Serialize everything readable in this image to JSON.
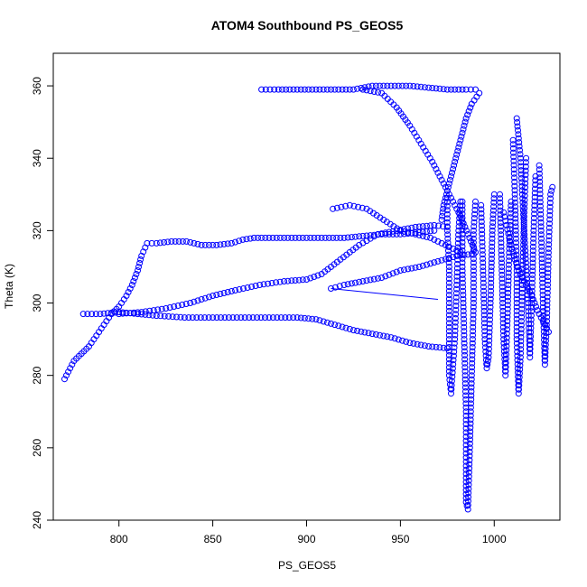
{
  "chart_data": {
    "type": "scatter",
    "title": "ATOM4 Southbound PS_GEOS5",
    "xlabel": "PS_GEOS5",
    "ylabel": "Theta (K)",
    "xlim": [
      765,
      1035
    ],
    "ylim": [
      240,
      369
    ],
    "x_ticks": [
      800,
      850,
      900,
      950,
      1000
    ],
    "y_ticks": [
      240,
      260,
      280,
      300,
      320,
      340,
      360
    ],
    "grid": false,
    "marker": "open-circle",
    "color": "#0000ff",
    "series": [
      {
        "segments": [
          [
            [
              771,
              279
            ],
            [
              773,
              281
            ],
            [
              776,
              284
            ],
            [
              780,
              286
            ],
            [
              784,
              288
            ],
            [
              788,
              291
            ],
            [
              792,
              294
            ],
            [
              796,
              297
            ],
            [
              800,
              299
            ],
            [
              804,
              302
            ],
            [
              807,
              305
            ],
            [
              810,
              309
            ],
            [
              812,
              313
            ],
            [
              815,
              316.5
            ],
            [
              820,
              316.5
            ],
            [
              828,
              317
            ],
            [
              836,
              317
            ],
            [
              844,
              316
            ],
            [
              852,
              316
            ],
            [
              860,
              316.5
            ],
            [
              866,
              317.5
            ],
            [
              872,
              318
            ],
            [
              880,
              318
            ],
            [
              890,
              318
            ],
            [
              900,
              318
            ],
            [
              910,
              318
            ],
            [
              920,
              318
            ],
            [
              930,
              318.5
            ],
            [
              940,
              319
            ],
            [
              950,
              319
            ],
            [
              960,
              319.5
            ],
            [
              968,
              320
            ]
          ],
          [
            [
              781,
              297
            ],
            [
              790,
              297
            ],
            [
              800,
              297.5
            ],
            [
              810,
              297
            ],
            [
              820,
              296.5
            ],
            [
              835,
              296
            ],
            [
              850,
              296
            ],
            [
              865,
              296
            ],
            [
              880,
              296
            ],
            [
              895,
              296
            ],
            [
              905,
              295.5
            ],
            [
              915,
              294
            ],
            [
              925,
              292.5
            ],
            [
              935,
              291.5
            ],
            [
              945,
              290.5
            ],
            [
              955,
              289
            ],
            [
              965,
              288
            ],
            [
              975,
              287.5
            ]
          ],
          [
            [
              800,
              297
            ],
            [
              812,
              297.5
            ],
            [
              825,
              298.5
            ],
            [
              838,
              300
            ],
            [
              850,
              302
            ],
            [
              862,
              303.5
            ],
            [
              875,
              305
            ],
            [
              888,
              306
            ],
            [
              900,
              306.5
            ],
            [
              908,
              308
            ],
            [
              918,
              312
            ],
            [
              928,
              316
            ],
            [
              938,
              319
            ],
            [
              948,
              320
            ],
            [
              958,
              321
            ],
            [
              968,
              321.5
            ],
            [
              975,
              321
            ]
          ],
          [
            [
              876,
              359
            ],
            [
              885,
              359
            ],
            [
              895,
              359
            ],
            [
              905,
              359
            ],
            [
              915,
              359
            ],
            [
              925,
              359
            ],
            [
              935,
              360
            ],
            [
              945,
              360
            ],
            [
              955,
              360
            ],
            [
              965,
              359.5
            ],
            [
              975,
              359
            ],
            [
              985,
              359
            ],
            [
              990,
              359
            ]
          ],
          [
            [
              930,
              359
            ],
            [
              940,
              358
            ],
            [
              948,
              354
            ],
            [
              955,
              349
            ],
            [
              961,
              344
            ],
            [
              967,
              339
            ],
            [
              972,
              334
            ],
            [
              977,
              329
            ],
            [
              982,
              324
            ],
            [
              986,
              319
            ],
            [
              990,
              314
            ]
          ],
          [
            [
              914,
              326
            ],
            [
              923,
              327
            ],
            [
              932,
              326
            ],
            [
              941,
              323
            ],
            [
              950,
              320
            ],
            [
              958,
              319
            ],
            [
              966,
              318
            ],
            [
              974,
              316
            ],
            [
              982,
              314
            ]
          ],
          [
            [
              913,
              304
            ],
            [
              920,
              305
            ],
            [
              930,
              306
            ],
            [
              940,
              307
            ],
            [
              950,
              309
            ],
            [
              960,
              310
            ],
            [
              970,
              311.5
            ],
            [
              980,
              313
            ],
            [
              988,
              313.5
            ]
          ],
          [
            [
              992,
              358
            ],
            [
              988,
              355
            ],
            [
              985,
              351
            ],
            [
              983,
              347
            ],
            [
              981,
              343
            ],
            [
              979,
              339
            ],
            [
              977,
              335
            ],
            [
              975,
              331
            ],
            [
              973,
              327
            ],
            [
              972,
              323
            ]
          ],
          [
            [
              975,
              329
            ],
            [
              975,
              320
            ],
            [
              976,
              310
            ],
            [
              976,
              300
            ],
            [
              976,
              290
            ],
            [
              976,
              280
            ],
            [
              977,
              275
            ],
            [
              979,
              290
            ],
            [
              980,
              305
            ],
            [
              981,
              320
            ],
            [
              982,
              328
            ]
          ],
          [
            [
              983,
              328
            ],
            [
              983,
              310
            ],
            [
              984,
              290
            ],
            [
              985,
              270
            ],
            [
              985,
              255
            ],
            [
              985,
              245
            ],
            [
              986,
              243
            ],
            [
              987,
              260
            ],
            [
              988,
              280
            ],
            [
              989,
              300
            ],
            [
              989,
              320
            ],
            [
              990,
              328
            ]
          ],
          [
            [
              993,
              327
            ],
            [
              994,
              310
            ],
            [
              995,
              290
            ],
            [
              996,
              282
            ],
            [
              997,
              285
            ],
            [
              998,
              300
            ],
            [
              999,
              320
            ],
            [
              1000,
              330
            ]
          ],
          [
            [
              1003,
              330
            ],
            [
              1004,
              310
            ],
            [
              1005,
              290
            ],
            [
              1006,
              280
            ],
            [
              1007,
              295
            ],
            [
              1008,
              315
            ],
            [
              1009,
              328
            ]
          ],
          [
            [
              1010,
              345
            ],
            [
              1011,
              330
            ],
            [
              1012,
              310
            ],
            [
              1012,
              290
            ],
            [
              1013,
              275
            ],
            [
              1014,
              285
            ],
            [
              1015,
              305
            ],
            [
              1016,
              325
            ],
            [
              1017,
              340
            ]
          ],
          [
            [
              1012,
              351
            ],
            [
              1014,
              340
            ],
            [
              1016,
              320
            ],
            [
              1018,
              300
            ],
            [
              1019,
              285
            ],
            [
              1020,
              300
            ],
            [
              1021,
              320
            ],
            [
              1022,
              335
            ]
          ],
          [
            [
              1024,
              338
            ],
            [
              1025,
              320
            ],
            [
              1026,
              300
            ],
            [
              1027,
              283
            ],
            [
              1028,
              295
            ],
            [
              1029,
              315
            ],
            [
              1030,
              330
            ],
            [
              1031,
              332
            ]
          ],
          [
            [
              1005,
              325
            ],
            [
              1008,
              318
            ],
            [
              1011,
              312
            ],
            [
              1014,
              308
            ],
            [
              1017,
              305
            ],
            [
              1020,
              302
            ],
            [
              1023,
              298
            ],
            [
              1026,
              295
            ],
            [
              1029,
              292
            ]
          ]
        ]
      }
    ],
    "annotation_line": [
      [
        913,
        304
      ],
      [
        970,
        301
      ]
    ]
  }
}
